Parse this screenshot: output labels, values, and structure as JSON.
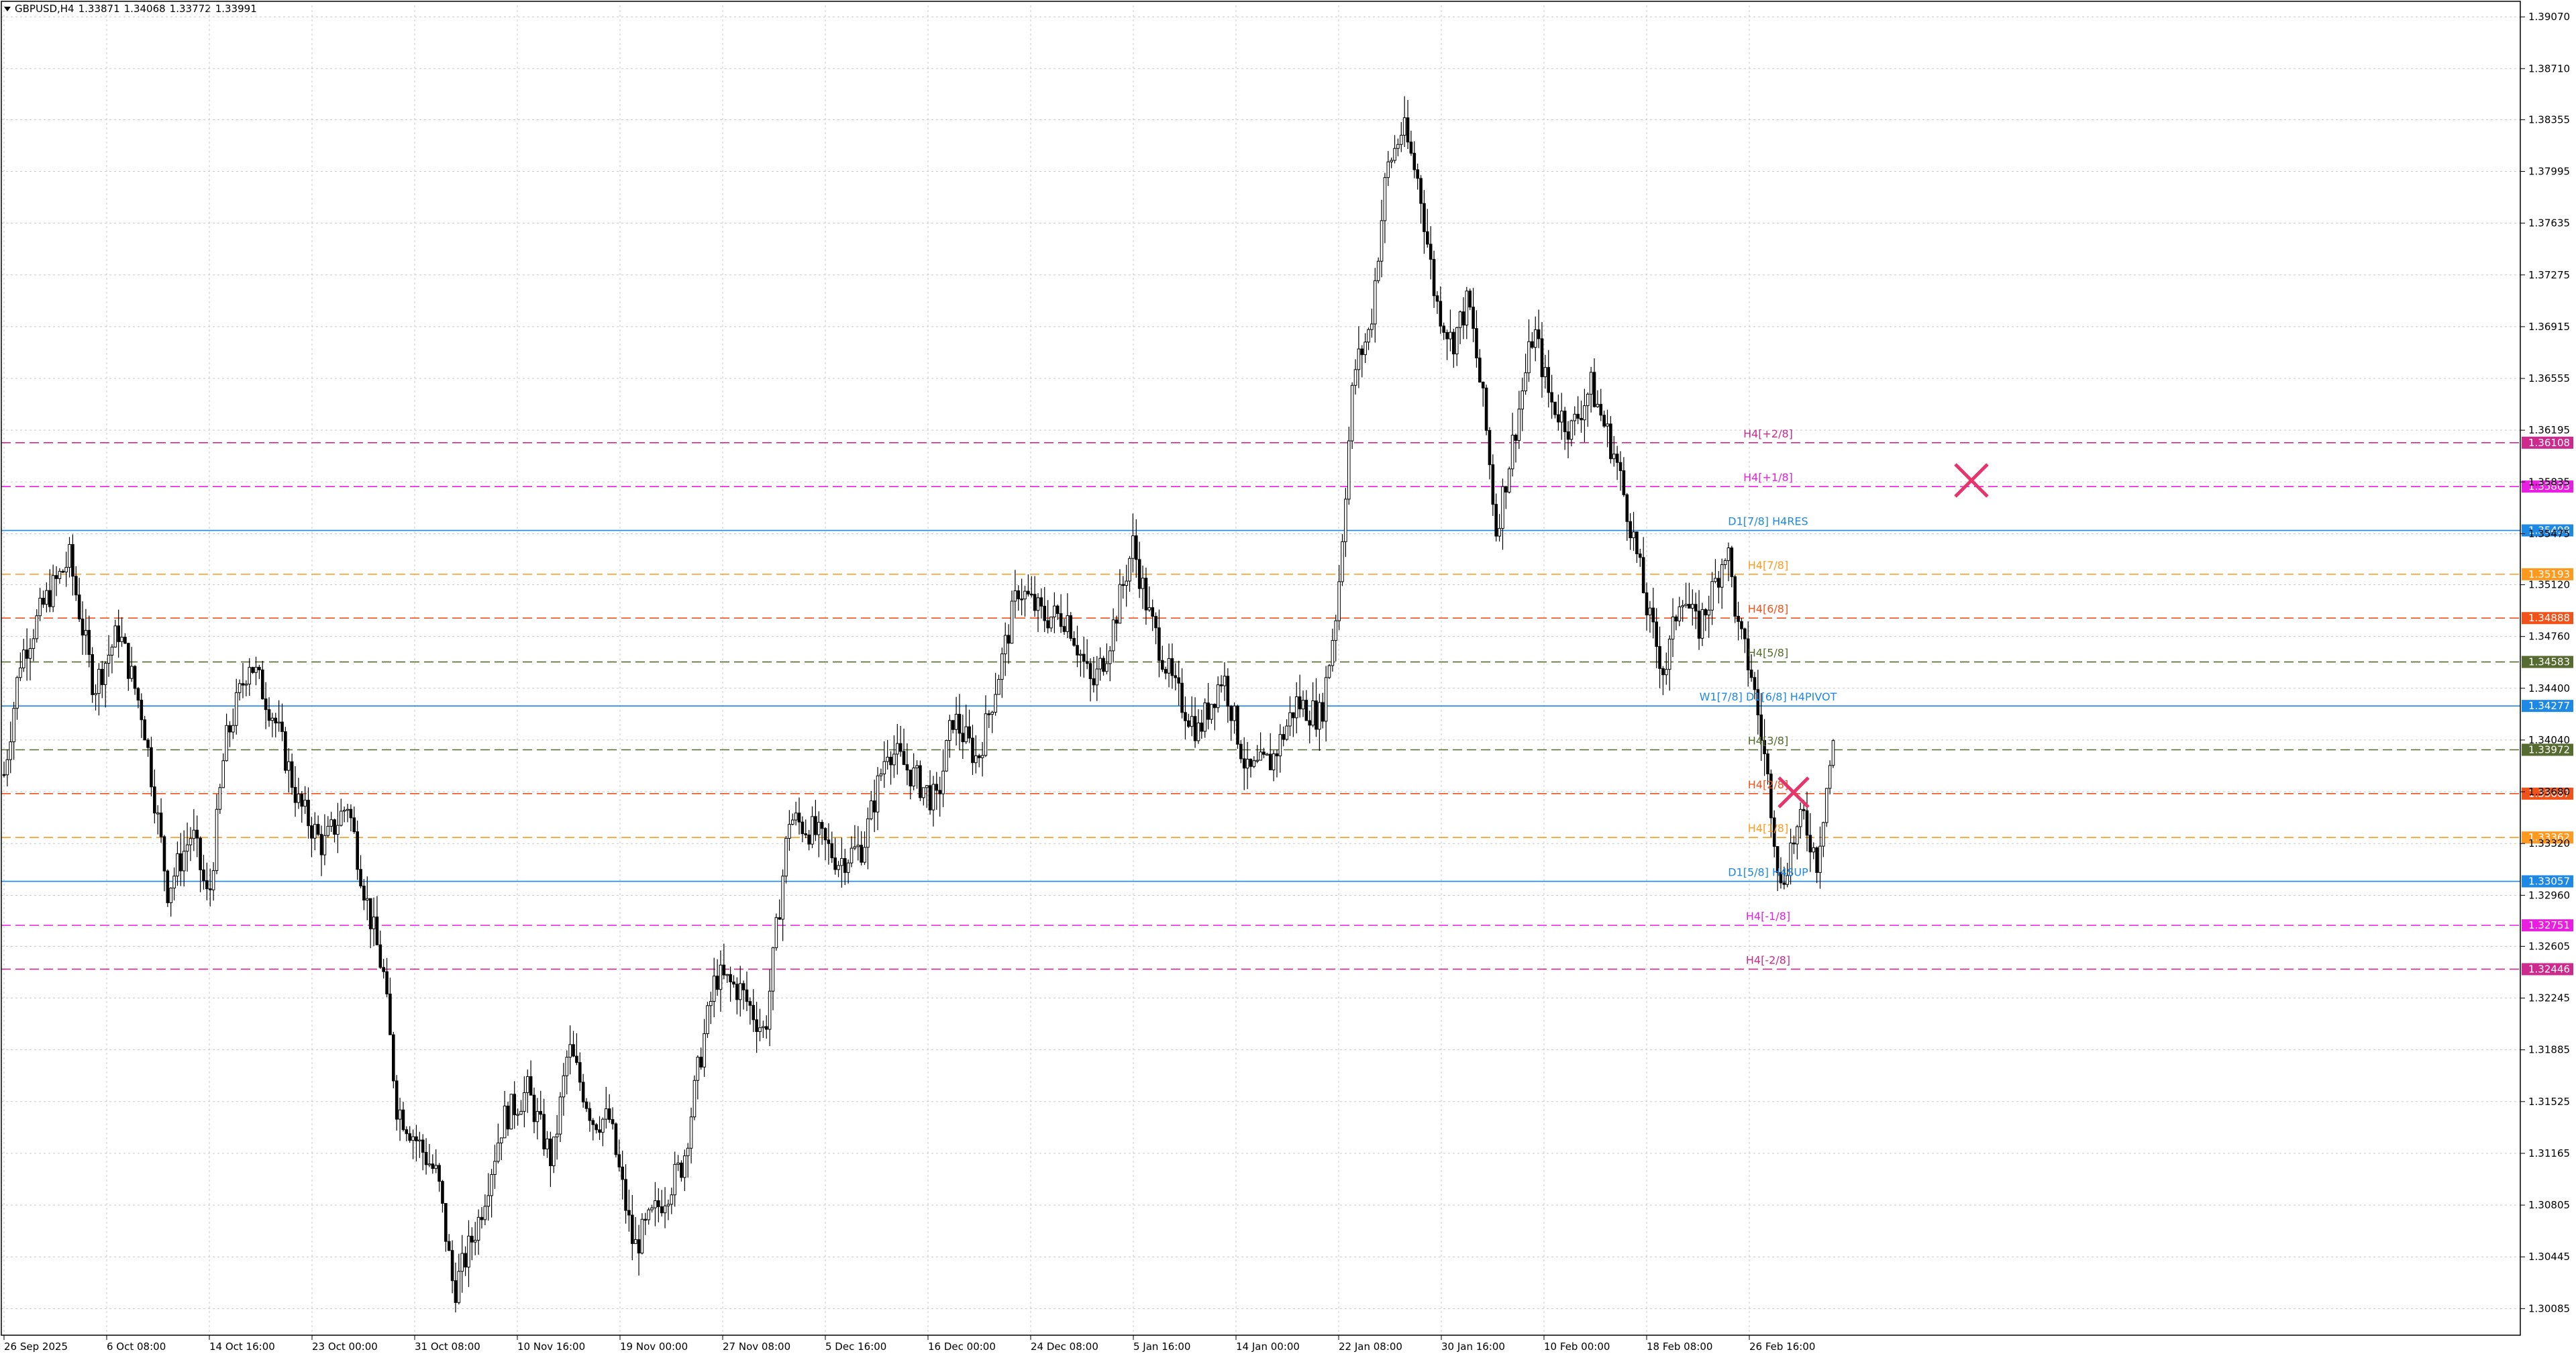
{
  "header": {
    "symbol": "GBPUSD,H4",
    "open": "1.33871",
    "high": "1.34068",
    "low": "1.33772",
    "close": "1.33991"
  },
  "colors": {
    "background": "#ffffff",
    "grid": "#c8c8c8",
    "candle": "#000000",
    "axis": "#000000",
    "cross_marker": "#e8336b"
  },
  "chart_data": {
    "type": "candlestick",
    "symbol": "GBPUSD",
    "timeframe": "H4",
    "grid": true,
    "ylim": [
      1.299,
      1.3915
    ],
    "y_ticks": [
      "1.39070",
      "1.38710",
      "1.38355",
      "1.37995",
      "1.37635",
      "1.37275",
      "1.36915",
      "1.36555",
      "1.36195",
      "1.35835",
      "1.35475",
      "1.35120",
      "1.34760",
      "1.34400",
      "1.34040",
      "1.33680",
      "1.33320",
      "1.32960",
      "1.32605",
      "1.32245",
      "1.31885",
      "1.31525",
      "1.31165",
      "1.30805",
      "1.30445",
      "1.30085"
    ],
    "x_ticks": [
      "26 Sep 2025",
      "6 Oct 08:00",
      "14 Oct 16:00",
      "23 Oct 00:00",
      "31 Oct 08:00",
      "10 Nov 16:00",
      "19 Nov 00:00",
      "27 Nov 08:00",
      "5 Dec 16:00",
      "16 Dec 00:00",
      "24 Dec 08:00",
      "5 Jan 16:00",
      "14 Jan 00:00",
      "22 Jan 08:00",
      "30 Jan 16:00",
      "10 Feb 00:00",
      "18 Feb 08:00",
      "26 Feb 16:00"
    ],
    "price_path": [
      [
        0,
        1.338
      ],
      [
        10,
        1.346
      ],
      [
        25,
        1.35
      ],
      [
        40,
        1.353
      ],
      [
        55,
        1.344
      ],
      [
        70,
        1.348
      ],
      [
        85,
        1.342
      ],
      [
        100,
        1.33
      ],
      [
        115,
        1.334
      ],
      [
        125,
        1.329
      ],
      [
        135,
        1.34
      ],
      [
        150,
        1.346
      ],
      [
        165,
        1.342
      ],
      [
        180,
        1.336
      ],
      [
        195,
        1.333
      ],
      [
        210,
        1.336
      ],
      [
        222,
        1.329
      ],
      [
        232,
        1.324
      ],
      [
        240,
        1.315
      ],
      [
        255,
        1.312
      ],
      [
        265,
        1.31
      ],
      [
        275,
        1.302
      ],
      [
        290,
        1.307
      ],
      [
        305,
        1.314
      ],
      [
        320,
        1.316
      ],
      [
        335,
        1.311
      ],
      [
        345,
        1.319
      ],
      [
        360,
        1.314
      ],
      [
        370,
        1.314
      ],
      [
        385,
        1.305
      ],
      [
        400,
        1.308
      ],
      [
        415,
        1.311
      ],
      [
        425,
        1.318
      ],
      [
        435,
        1.324
      ],
      [
        450,
        1.323
      ],
      [
        465,
        1.32
      ],
      [
        480,
        1.335
      ],
      [
        495,
        1.334
      ],
      [
        510,
        1.332
      ],
      [
        525,
        1.333
      ],
      [
        540,
        1.34
      ],
      [
        555,
        1.338
      ],
      [
        570,
        1.336
      ],
      [
        580,
        1.342
      ],
      [
        595,
        1.339
      ],
      [
        610,
        1.346
      ],
      [
        620,
        1.351
      ],
      [
        635,
        1.349
      ],
      [
        650,
        1.349
      ],
      [
        665,
        1.344
      ],
      [
        675,
        1.347
      ],
      [
        690,
        1.354
      ],
      [
        700,
        1.349
      ],
      [
        715,
        1.344
      ],
      [
        730,
        1.341
      ],
      [
        745,
        1.345
      ],
      [
        760,
        1.338
      ],
      [
        775,
        1.339
      ],
      [
        790,
        1.343
      ],
      [
        805,
        1.342
      ],
      [
        815,
        1.35
      ],
      [
        825,
        1.366
      ],
      [
        835,
        1.369
      ],
      [
        845,
        1.38
      ],
      [
        855,
        1.383
      ],
      [
        865,
        1.379
      ],
      [
        875,
        1.371
      ],
      [
        885,
        1.368
      ],
      [
        895,
        1.371
      ],
      [
        905,
        1.363
      ],
      [
        912,
        1.355
      ],
      [
        922,
        1.361
      ],
      [
        935,
        1.369
      ],
      [
        945,
        1.364
      ],
      [
        958,
        1.362
      ],
      [
        970,
        1.365
      ],
      [
        985,
        1.36
      ],
      [
        995,
        1.355
      ],
      [
        1005,
        1.349
      ],
      [
        1015,
        1.345
      ],
      [
        1025,
        1.351
      ],
      [
        1035,
        1.348
      ],
      [
        1045,
        1.351
      ],
      [
        1053,
        1.354
      ],
      [
        1060,
        1.348
      ],
      [
        1068,
        1.345
      ],
      [
        1075,
        1.34
      ],
      [
        1080,
        1.336
      ],
      [
        1086,
        1.33
      ],
      [
        1092,
        1.333
      ],
      [
        1100,
        1.335
      ],
      [
        1108,
        1.332
      ],
      [
        1115,
        1.338
      ],
      [
        1118,
        1.3399
      ]
    ],
    "levels": [
      {
        "label": "H4[+2/8]",
        "price": "1.36108",
        "value": 1.36108,
        "color": "#cc2a8c",
        "style": "dash"
      },
      {
        "label": "H4[+1/8]",
        "price": "1.35803",
        "value": 1.35803,
        "color": "#e81ee0",
        "style": "dash"
      },
      {
        "label": "D1[7/8] H4RES",
        "price": "1.35498",
        "value": 1.35498,
        "color": "#1e88e5",
        "style": "solid"
      },
      {
        "label": "H4[7/8]",
        "price": "1.35193",
        "value": 1.35193,
        "color": "#ff9a1e",
        "style": "dash"
      },
      {
        "label": "H4[6/8]",
        "price": "1.34888",
        "value": 1.34888,
        "color": "#f0521a",
        "style": "dash"
      },
      {
        "label": "H4[5/8]",
        "price": "1.34583",
        "value": 1.34583,
        "color": "#556b2f",
        "style": "dash"
      },
      {
        "label": "W1[7/8] D1[6/8] H4PIVOT",
        "price": "1.34277",
        "value": 1.34277,
        "color": "#1e88e5",
        "style": "solid"
      },
      {
        "label": "H4[3/8]",
        "price": "1.33972",
        "value": 1.33972,
        "color": "#556b2f",
        "style": "dash"
      },
      {
        "label": "H4[2/8]",
        "price": "1.33667",
        "value": 1.33667,
        "color": "#f0521a",
        "style": "dash"
      },
      {
        "label": "H4[1/8]",
        "price": "1.33362",
        "value": 1.33362,
        "color": "#ff9a1e",
        "style": "dash"
      },
      {
        "label": "D1[5/8] H4SUP",
        "price": "1.33057",
        "value": 1.33057,
        "color": "#1e88e5",
        "style": "solid"
      },
      {
        "label": "H4[-1/8]",
        "price": "1.32751",
        "value": 1.32751,
        "color": "#e81ee0",
        "style": "dash"
      },
      {
        "label": "H4[-2/8]",
        "price": "1.32446",
        "value": 1.32446,
        "color": "#cc2a8c",
        "style": "dash"
      }
    ]
  }
}
